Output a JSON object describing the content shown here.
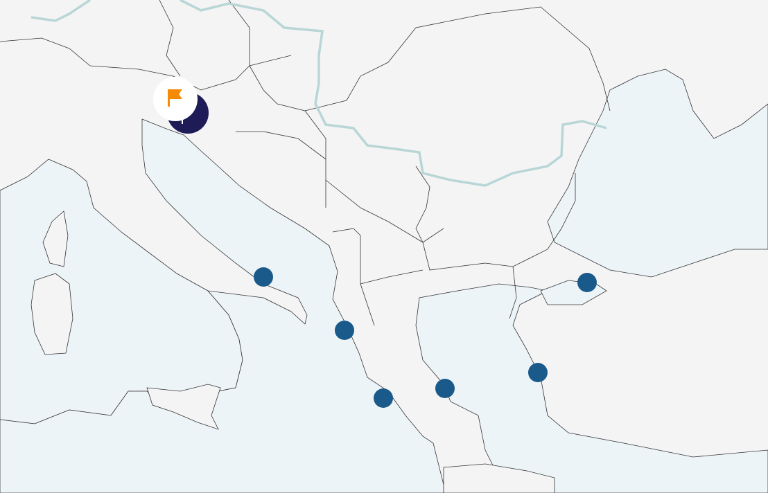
{
  "map": {
    "colors": {
      "land": "#f4f4f4",
      "sea": "#edf4f8",
      "border": "#333333",
      "river": "#b9d6d6",
      "stop_marker": "#1a5a8a",
      "start_marker": "#1e1b57",
      "flag": "#f58a07"
    },
    "start_marker": {
      "icon": "flag-icon"
    },
    "stops": [
      {
        "name": "stop-1"
      },
      {
        "name": "stop-2"
      },
      {
        "name": "stop-3"
      },
      {
        "name": "stop-4"
      },
      {
        "name": "stop-5"
      },
      {
        "name": "stop-6"
      }
    ]
  }
}
